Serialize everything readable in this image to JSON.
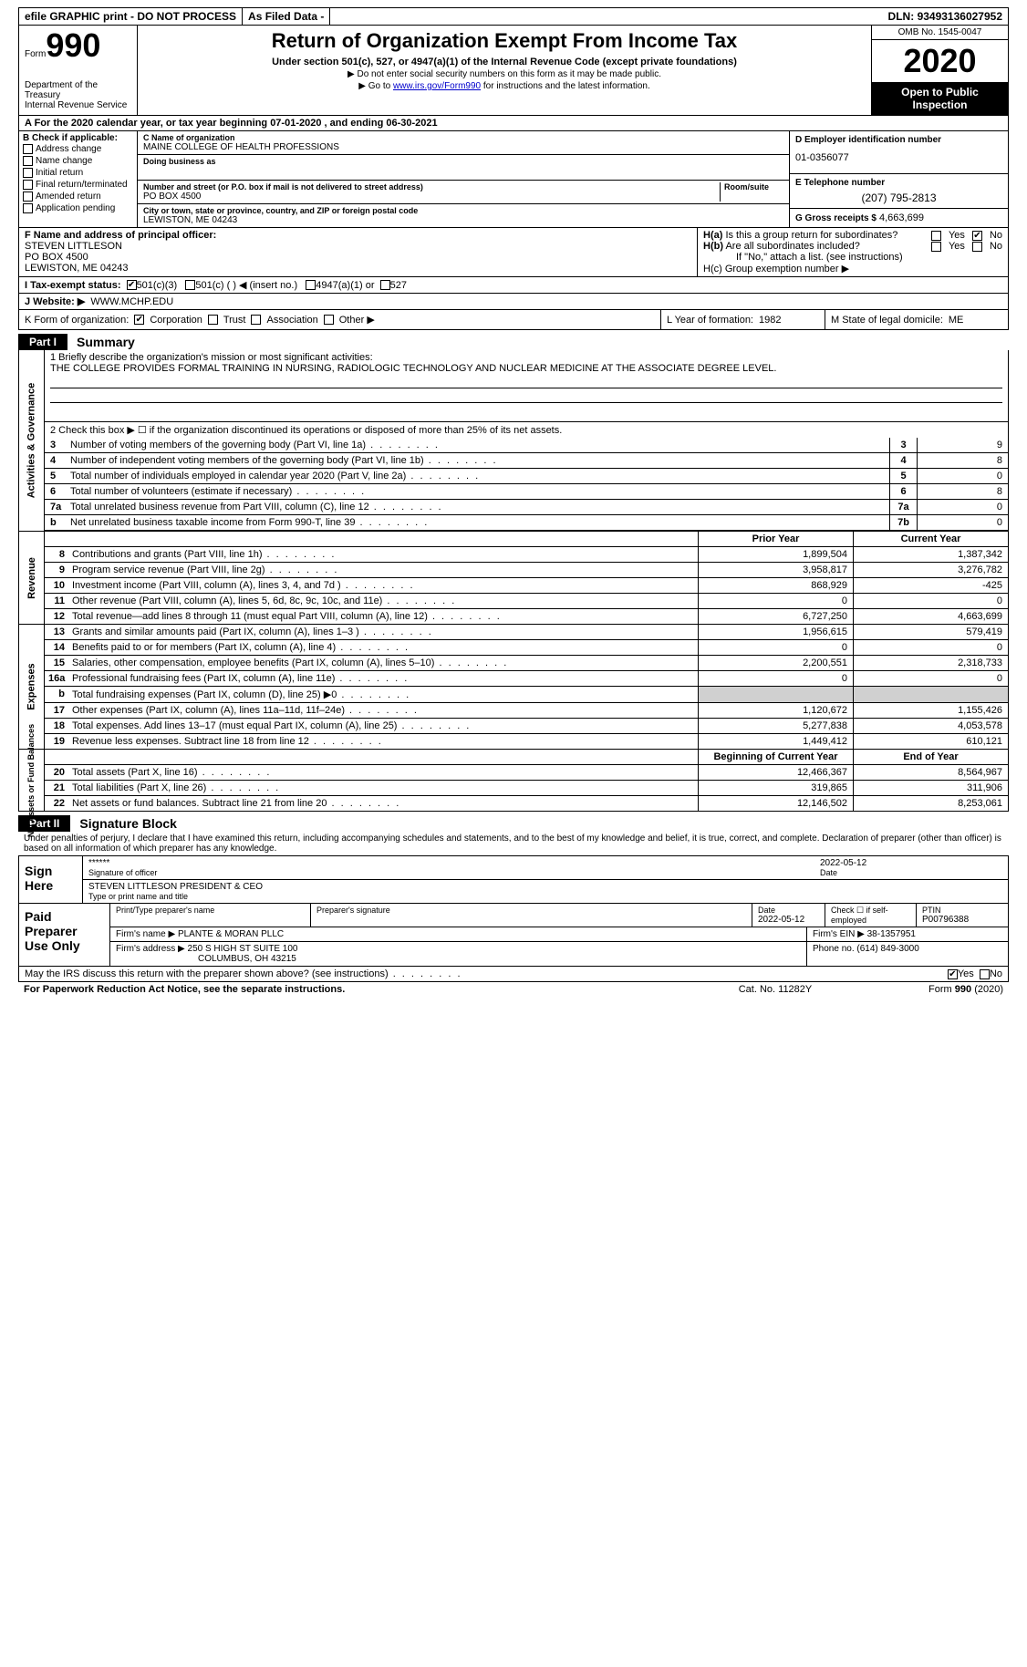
{
  "topbar": {
    "efile": "efile GRAPHIC print - DO NOT PROCESS",
    "asfiled": "As Filed Data -",
    "dln_label": "DLN:",
    "dln": "93493136027952"
  },
  "header": {
    "form_label": "Form",
    "form_num": "990",
    "dept": "Department of the Treasury\nInternal Revenue Service",
    "title": "Return of Organization Exempt From Income Tax",
    "sub1": "Under section 501(c), 527, or 4947(a)(1) of the Internal Revenue Code (except private foundations)",
    "sub2a": "▶ Do not enter social security numbers on this form as it may be made public.",
    "sub2b": "▶ Go to www.irs.gov/Form990 for instructions and the latest information.",
    "link": "www.irs.gov/Form990",
    "omb": "OMB No. 1545-0047",
    "year": "2020",
    "public": "Open to Public Inspection"
  },
  "row_a": "A  For the 2020 calendar year, or tax year beginning 07-01-2020  , and ending 06-30-2021",
  "col_b": {
    "hdr": "B Check if applicable:",
    "items": [
      "Address change",
      "Name change",
      "Initial return",
      "Final return/terminated",
      "Amended return",
      "Application pending"
    ]
  },
  "col_c": {
    "name_lbl": "C Name of organization",
    "name": "MAINE COLLEGE OF HEALTH PROFESSIONS",
    "dba_lbl": "Doing business as",
    "dba": "",
    "street_lbl": "Number and street (or P.O. box if mail is not delivered to street address)",
    "street": "PO BOX 4500",
    "room_lbl": "Room/suite",
    "city_lbl": "City or town, state or province, country, and ZIP or foreign postal code",
    "city": "LEWISTON, ME  04243"
  },
  "col_d": {
    "ein_lbl": "D Employer identification number",
    "ein": "01-0356077",
    "phone_lbl": "E Telephone number",
    "phone": "(207) 795-2813",
    "gross_lbl": "G Gross receipts $",
    "gross": "4,663,699"
  },
  "col_f": {
    "lbl": "F  Name and address of principal officer:",
    "name": "STEVEN LITTLESON",
    "addr1": "PO BOX 4500",
    "addr2": "LEWISTON, ME  04243"
  },
  "col_h": {
    "ha": "H(a) Is this a group return for subordinates?",
    "hb": "H(b) Are all subordinates included?",
    "ifno": "If \"No,\" attach a list. (see instructions)",
    "hc": "H(c) Group exemption number ▶",
    "yes": "Yes",
    "no": "No"
  },
  "row_i": {
    "lbl": "I  Tax-exempt status:",
    "o1": "501(c)(3)",
    "o2": "501(c) (  ) ◀ (insert no.)",
    "o3": "4947(a)(1) or",
    "o4": "527"
  },
  "row_j": {
    "lbl": "J  Website: ▶",
    "val": "WWW.MCHP.EDU"
  },
  "row_k": {
    "lbl": "K Form of organization:",
    "o1": "Corporation",
    "o2": "Trust",
    "o3": "Association",
    "o4": "Other ▶"
  },
  "row_l": {
    "lbl": "L Year of formation:",
    "val": "1982"
  },
  "row_m": {
    "lbl": "M State of legal domicile:",
    "val": "ME"
  },
  "part1": {
    "badge": "Part I",
    "title": "Summary"
  },
  "gov": {
    "label": "Activities & Governance",
    "l1_lbl": "1 Briefly describe the organization's mission or most significant activities:",
    "l1_text": "THE COLLEGE PROVIDES FORMAL TRAINING IN NURSING, RADIOLOGIC TECHNOLOGY AND NUCLEAR MEDICINE AT THE ASSOCIATE DEGREE LEVEL.",
    "l2": "2  Check this box ▶ ☐ if the organization discontinued its operations or disposed of more than 25% of its net assets.",
    "rows": [
      {
        "n": "3",
        "d": "Number of voting members of the governing body (Part VI, line 1a)",
        "k": "3",
        "v": "9"
      },
      {
        "n": "4",
        "d": "Number of independent voting members of the governing body (Part VI, line 1b)",
        "k": "4",
        "v": "8"
      },
      {
        "n": "5",
        "d": "Total number of individuals employed in calendar year 2020 (Part V, line 2a)",
        "k": "5",
        "v": "0"
      },
      {
        "n": "6",
        "d": "Total number of volunteers (estimate if necessary)",
        "k": "6",
        "v": "8"
      },
      {
        "n": "7a",
        "d": "Total unrelated business revenue from Part VIII, column (C), line 12",
        "k": "7a",
        "v": "0"
      },
      {
        "n": "b",
        "d": "Net unrelated business taxable income from Form 990-T, line 39",
        "k": "7b",
        "v": "0"
      }
    ]
  },
  "fin": {
    "hdr_prior": "Prior Year",
    "hdr_curr": "Current Year",
    "revenue_label": "Revenue",
    "revenue": [
      {
        "n": "8",
        "d": "Contributions and grants (Part VIII, line 1h)",
        "p": "1,899,504",
        "c": "1,387,342"
      },
      {
        "n": "9",
        "d": "Program service revenue (Part VIII, line 2g)",
        "p": "3,958,817",
        "c": "3,276,782"
      },
      {
        "n": "10",
        "d": "Investment income (Part VIII, column (A), lines 3, 4, and 7d )",
        "p": "868,929",
        "c": "-425"
      },
      {
        "n": "11",
        "d": "Other revenue (Part VIII, column (A), lines 5, 6d, 8c, 9c, 10c, and 11e)",
        "p": "0",
        "c": "0"
      },
      {
        "n": "12",
        "d": "Total revenue—add lines 8 through 11 (must equal Part VIII, column (A), line 12)",
        "p": "6,727,250",
        "c": "4,663,699"
      }
    ],
    "expenses_label": "Expenses",
    "expenses": [
      {
        "n": "13",
        "d": "Grants and similar amounts paid (Part IX, column (A), lines 1–3 )",
        "p": "1,956,615",
        "c": "579,419"
      },
      {
        "n": "14",
        "d": "Benefits paid to or for members (Part IX, column (A), line 4)",
        "p": "0",
        "c": "0"
      },
      {
        "n": "15",
        "d": "Salaries, other compensation, employee benefits (Part IX, column (A), lines 5–10)",
        "p": "2,200,551",
        "c": "2,318,733"
      },
      {
        "n": "16a",
        "d": "Professional fundraising fees (Part IX, column (A), line 11e)",
        "p": "0",
        "c": "0"
      },
      {
        "n": "b",
        "d": "Total fundraising expenses (Part IX, column (D), line 25) ▶0",
        "p": "",
        "c": "",
        "gray": true
      },
      {
        "n": "17",
        "d": "Other expenses (Part IX, column (A), lines 11a–11d, 11f–24e)",
        "p": "1,120,672",
        "c": "1,155,426"
      },
      {
        "n": "18",
        "d": "Total expenses. Add lines 13–17 (must equal Part IX, column (A), line 25)",
        "p": "5,277,838",
        "c": "4,053,578"
      },
      {
        "n": "19",
        "d": "Revenue less expenses. Subtract line 18 from line 12",
        "p": "1,449,412",
        "c": "610,121"
      }
    ],
    "net_label": "Net Assets or Fund Balances",
    "net_hdr_b": "Beginning of Current Year",
    "net_hdr_e": "End of Year",
    "net": [
      {
        "n": "20",
        "d": "Total assets (Part X, line 16)",
        "p": "12,466,367",
        "c": "8,564,967"
      },
      {
        "n": "21",
        "d": "Total liabilities (Part X, line 26)",
        "p": "319,865",
        "c": "311,906"
      },
      {
        "n": "22",
        "d": "Net assets or fund balances. Subtract line 21 from line 20",
        "p": "12,146,502",
        "c": "8,253,061"
      }
    ]
  },
  "part2": {
    "badge": "Part II",
    "title": "Signature Block"
  },
  "sig": {
    "perjury": "Under penalties of perjury, I declare that I have examined this return, including accompanying schedules and statements, and to the best of my knowledge and belief, it is true, correct, and complete. Declaration of preparer (other than officer) is based on all information of which preparer has any knowledge.",
    "sign_here": "Sign Here",
    "stars": "******",
    "sig_officer": "Signature of officer",
    "date": "2022-05-12",
    "date_lbl": "Date",
    "name_title": "STEVEN LITTLESON  PRESIDENT & CEO",
    "type_lbl": "Type or print name and title"
  },
  "prep": {
    "label": "Paid Preparer Use Only",
    "print_lbl": "Print/Type preparer's name",
    "prep_sig_lbl": "Preparer's signature",
    "date_lbl": "Date",
    "date": "2022-05-12",
    "check_lbl": "Check ☐ if self-employed",
    "ptin_lbl": "PTIN",
    "ptin": "P00796388",
    "firm_name_lbl": "Firm's name    ▶",
    "firm_name": "PLANTE & MORAN PLLC",
    "firm_ein_lbl": "Firm's EIN ▶",
    "firm_ein": "38-1357951",
    "firm_addr_lbl": "Firm's address ▶",
    "firm_addr1": "250 S HIGH ST SUITE 100",
    "firm_addr2": "COLUMBUS, OH  43215",
    "phone_lbl": "Phone no.",
    "phone": "(614) 849-3000"
  },
  "footer": {
    "discuss": "May the IRS discuss this return with the preparer shown above? (see instructions)",
    "yes": "Yes",
    "no": "No",
    "paperwork": "For Paperwork Reduction Act Notice, see the separate instructions.",
    "cat": "Cat. No. 11282Y",
    "form": "Form 990 (2020)"
  }
}
